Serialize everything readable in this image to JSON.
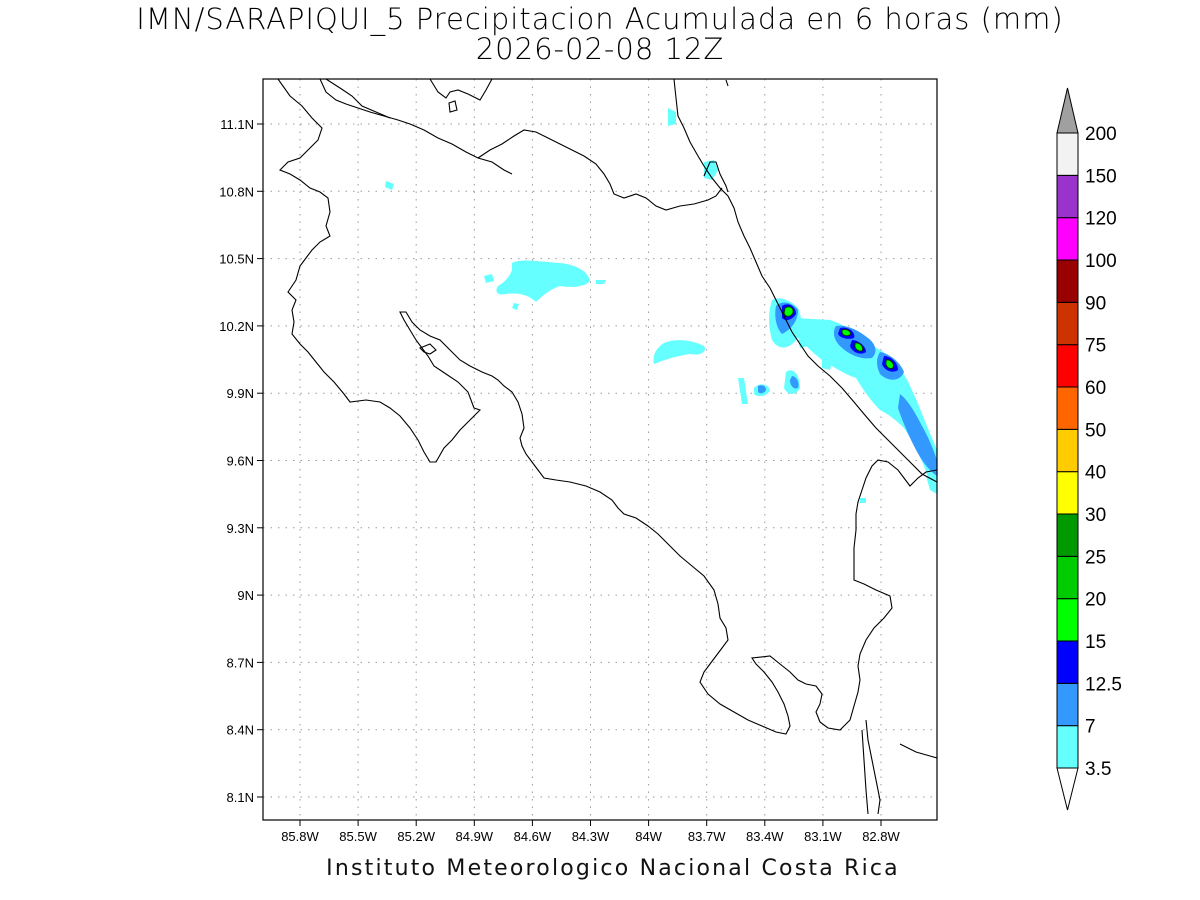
{
  "map": {
    "title": "IMN/SARAPIQUI_5 Precipitacion Acumulada en 6 horas (mm)",
    "subtitle": "2026-02-08 12Z",
    "credit": "Instituto Meteorologico Nacional Costa Rica",
    "lon_range": [
      -86.0,
      -82.5
    ],
    "lat_range": [
      8.0,
      11.3
    ],
    "lon_ticks": [
      {
        "value": -85.8,
        "label": "85.8W"
      },
      {
        "value": -85.5,
        "label": "85.5W"
      },
      {
        "value": -85.2,
        "label": "85.2W"
      },
      {
        "value": -84.9,
        "label": "84.9W"
      },
      {
        "value": -84.6,
        "label": "84.6W"
      },
      {
        "value": -84.3,
        "label": "84.3W"
      },
      {
        "value": -84.0,
        "label": "84W"
      },
      {
        "value": -83.7,
        "label": "83.7W"
      },
      {
        "value": -83.4,
        "label": "83.4W"
      },
      {
        "value": -83.1,
        "label": "83.1W"
      },
      {
        "value": -82.8,
        "label": "82.8W"
      }
    ],
    "lat_ticks": [
      {
        "value": 11.1,
        "label": "11.1N"
      },
      {
        "value": 10.8,
        "label": "10.8N"
      },
      {
        "value": 10.5,
        "label": "10.5N"
      },
      {
        "value": 10.2,
        "label": "10.2N"
      },
      {
        "value": 9.9,
        "label": "9.9N"
      },
      {
        "value": 9.6,
        "label": "9.6N"
      },
      {
        "value": 9.3,
        "label": "9.3N"
      },
      {
        "value": 9.0,
        "label": "9N"
      },
      {
        "value": 8.7,
        "label": "8.7N"
      },
      {
        "value": 8.4,
        "label": "8.4N"
      },
      {
        "value": 8.1,
        "label": "8.1N"
      }
    ],
    "grid": true
  },
  "colorbar": {
    "labels": [
      "3.5",
      "7",
      "12.5",
      "15",
      "20",
      "25",
      "30",
      "40",
      "50",
      "60",
      "75",
      "90",
      "100",
      "120",
      "150",
      "200"
    ],
    "colors": [
      "#66ffff",
      "#3399ff",
      "#0000ff",
      "#00ff00",
      "#00cc00",
      "#009900",
      "#ffff00",
      "#ffcc00",
      "#ff6600",
      "#ff0000",
      "#cc3300",
      "#990000",
      "#ff00ff",
      "#9933cc",
      "#f2f2f2"
    ],
    "over_color": "#a0a0a0",
    "under_color": "#ffffff"
  }
}
